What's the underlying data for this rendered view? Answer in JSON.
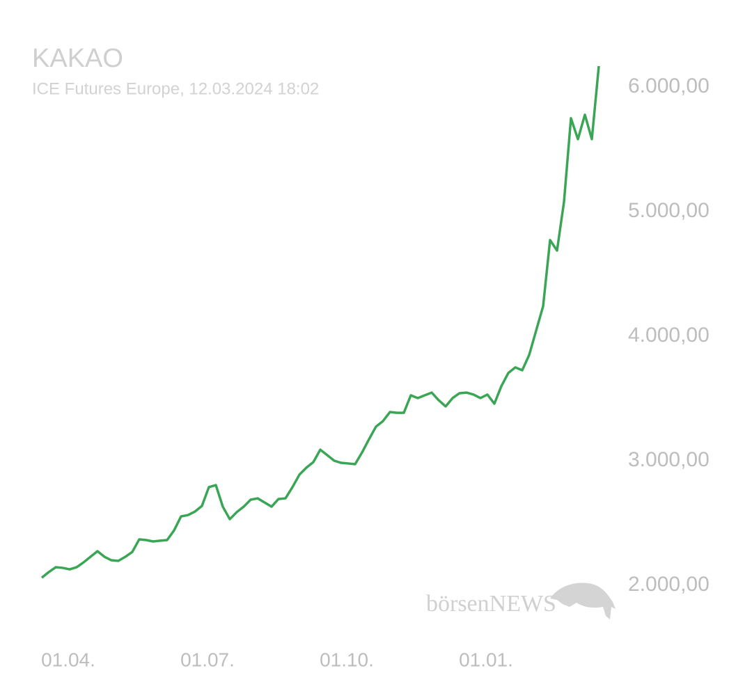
{
  "chart_data": {
    "type": "line",
    "title": "KAKAO",
    "subtitle": "ICE Futures Europe, 12.03.2024 18:02",
    "watermark": "börsenNEWS",
    "categories": [
      null,
      null,
      null,
      null,
      "01.04.",
      null,
      null,
      null,
      null,
      null,
      null,
      null,
      null,
      null,
      null,
      null,
      null,
      null,
      null,
      null,
      null,
      null,
      null,
      null,
      "01.07.",
      null,
      null,
      null,
      null,
      null,
      null,
      null,
      null,
      null,
      null,
      null,
      null,
      null,
      null,
      null,
      null,
      null,
      null,
      null,
      "01.10.",
      null,
      null,
      null,
      null,
      null,
      null,
      null,
      null,
      null,
      null,
      null,
      null,
      null,
      null,
      null,
      null,
      null,
      null,
      null,
      "01.01.",
      null,
      null,
      null,
      null,
      null,
      null,
      null,
      null,
      null,
      null,
      null,
      null,
      null,
      null,
      null,
      null
    ],
    "series": [
      {
        "name": "KAKAO",
        "color": "#3aa655",
        "values": [
          2061,
          2106,
          2145,
          2140,
          2128,
          2145,
          2184,
          2229,
          2274,
          2229,
          2201,
          2196,
          2229,
          2268,
          2369,
          2363,
          2352,
          2358,
          2363,
          2441,
          2553,
          2564,
          2592,
          2637,
          2788,
          2804,
          2631,
          2531,
          2587,
          2631,
          2687,
          2698,
          2665,
          2631,
          2693,
          2698,
          2788,
          2888,
          2944,
          2989,
          3089,
          3045,
          3000,
          2983,
          2978,
          2972,
          3067,
          3173,
          3274,
          3318,
          3391,
          3385,
          3385,
          3525,
          3503,
          3525,
          3547,
          3486,
          3436,
          3503,
          3542,
          3547,
          3531,
          3503,
          3531,
          3458,
          3598,
          3704,
          3749,
          3726,
          3849,
          4045,
          4240,
          4771,
          4687,
          5078,
          5749,
          5581,
          5777,
          5581,
          6168
        ]
      }
    ],
    "ylim": [
      1700,
      6200
    ],
    "yticks": [
      {
        "value": 2000,
        "label": "2.000,00"
      },
      {
        "value": 3000,
        "label": "3.000,00"
      },
      {
        "value": 4000,
        "label": "4.000,00"
      },
      {
        "value": 5000,
        "label": "5.000,00"
      },
      {
        "value": 6000,
        "label": "6.000,00"
      }
    ],
    "grid": false
  }
}
